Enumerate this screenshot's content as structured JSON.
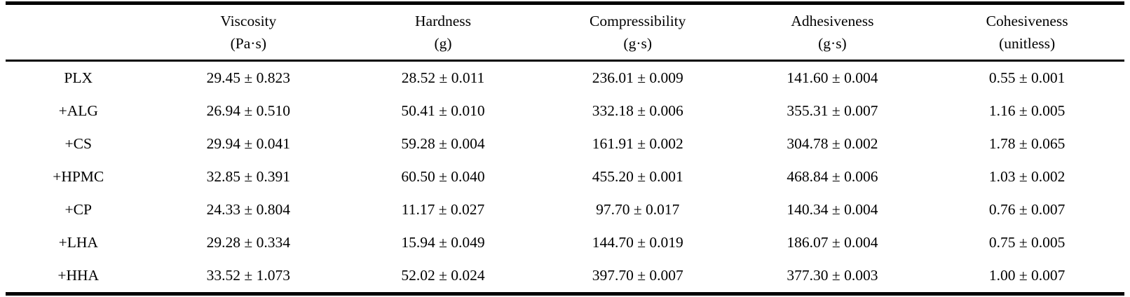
{
  "table": {
    "columns": [
      {
        "name": "",
        "unit": ""
      },
      {
        "name": "Viscosity",
        "unit": "(Pa·s)"
      },
      {
        "name": "Hardness",
        "unit": "(g)"
      },
      {
        "name": "Compressibility",
        "unit": "(g·s)"
      },
      {
        "name": "Adhesiveness",
        "unit": "(g·s)"
      },
      {
        "name": "Cohesiveness",
        "unit": "(unitless)"
      }
    ],
    "rows": [
      {
        "label": "PLX",
        "viscosity": "29.45 ± 0.823",
        "hardness": "28.52 ± 0.011",
        "compressibility": "236.01 ± 0.009",
        "adhesiveness": "141.60 ± 0.004",
        "cohesiveness": "0.55 ± 0.001"
      },
      {
        "label": "+ALG",
        "viscosity": "26.94 ± 0.510",
        "hardness": "50.41 ± 0.010",
        "compressibility": "332.18 ± 0.006",
        "adhesiveness": "355.31 ± 0.007",
        "cohesiveness": "1.16 ± 0.005"
      },
      {
        "label": "+CS",
        "viscosity": "29.94 ± 0.041",
        "hardness": "59.28 ± 0.004",
        "compressibility": "161.91 ± 0.002",
        "adhesiveness": "304.78 ± 0.002",
        "cohesiveness": "1.78 ± 0.065"
      },
      {
        "label": "+HPMC",
        "viscosity": "32.85 ± 0.391",
        "hardness": "60.50 ± 0.040",
        "compressibility": "455.20 ± 0.001",
        "adhesiveness": "468.84 ± 0.006",
        "cohesiveness": "1.03 ± 0.002"
      },
      {
        "label": "+CP",
        "viscosity": "24.33 ± 0.804",
        "hardness": "11.17 ± 0.027",
        "compressibility": "97.70 ± 0.017",
        "adhesiveness": "140.34 ± 0.004",
        "cohesiveness": "0.76 ± 0.007"
      },
      {
        "label": "+LHA",
        "viscosity": "29.28 ± 0.334",
        "hardness": "15.94 ± 0.049",
        "compressibility": "144.70 ± 0.019",
        "adhesiveness": "186.07 ± 0.004",
        "cohesiveness": "0.75 ± 0.005"
      },
      {
        "label": "+HHA",
        "viscosity": "33.52 ± 1.073",
        "hardness": "52.02 ± 0.024",
        "compressibility": "397.70 ± 0.007",
        "adhesiveness": "377.30 ± 0.003",
        "cohesiveness": "1.00 ± 0.007"
      }
    ]
  }
}
